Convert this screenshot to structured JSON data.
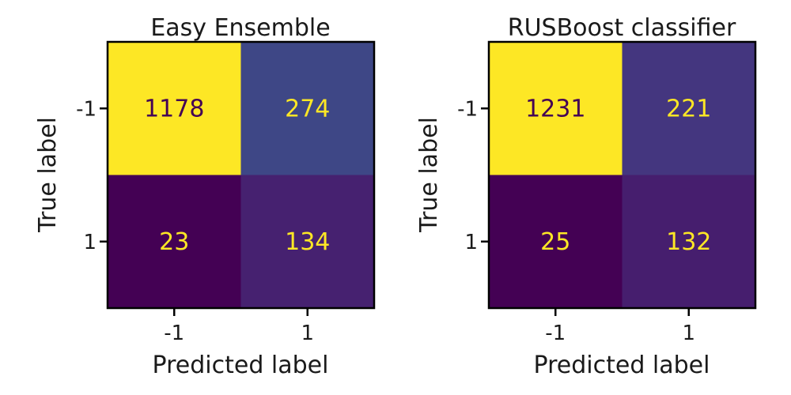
{
  "chart_data": [
    {
      "type": "heatmap",
      "title": "Easy Ensemble",
      "xlabel": "Predicted label",
      "ylabel": "True label",
      "x_categories": [
        "-1",
        "1"
      ],
      "y_categories": [
        "-1",
        "1"
      ],
      "values": [
        [
          1178,
          274
        ],
        [
          23,
          134
        ]
      ],
      "colormap": "viridis",
      "colorbar": false
    },
    {
      "type": "heatmap",
      "title": "RUSBoost classifier",
      "xlabel": "Predicted label",
      "ylabel": "True label",
      "x_categories": [
        "-1",
        "1"
      ],
      "y_categories": [
        "-1",
        "1"
      ],
      "values": [
        [
          1231,
          221
        ],
        [
          25,
          132
        ]
      ],
      "colormap": "viridis",
      "colorbar": false
    }
  ],
  "colors": {
    "low_text": "#fde725",
    "high_text": "#440154",
    "frame": "#000000"
  }
}
